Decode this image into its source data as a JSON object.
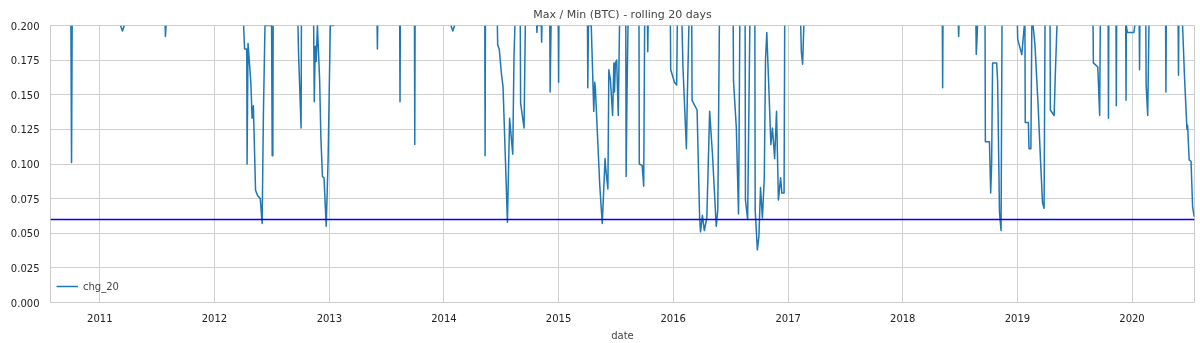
{
  "chart_data": {
    "type": "line",
    "title": "Max / Min (BTC) - rolling 20 days",
    "xlabel": "date",
    "xlim": [
      "2010-07-28",
      "2020-07-18"
    ],
    "ylim": [
      0,
      0.2
    ],
    "xticks": [
      "2011",
      "2012",
      "2013",
      "2014",
      "2015",
      "2016",
      "2017",
      "2018",
      "2019",
      "2020"
    ],
    "yticks": [
      {
        "value": 0,
        "label": "0.000"
      },
      {
        "value": 0.025,
        "label": "0.025"
      },
      {
        "value": 0.05,
        "label": "0.050"
      },
      {
        "value": 0.075,
        "label": "0.075"
      },
      {
        "value": 0.1,
        "label": "0.100"
      },
      {
        "value": 0.125,
        "label": "0.125"
      },
      {
        "value": 0.15,
        "label": "0.150"
      },
      {
        "value": 0.175,
        "label": "0.175"
      },
      {
        "value": 0.2,
        "label": "0.200"
      }
    ],
    "grid": true,
    "legend": "bottom left",
    "line_style": "solid",
    "ref_lines": [
      {
        "axis": "y",
        "value": 0.06,
        "color": "#0000ff"
      }
    ],
    "series": [
      {
        "name": "chg_20",
        "color": "#1f77b4",
        "x": [
          "2010-10-01",
          "2010-10-03",
          "2010-10-05",
          "2011-01-01",
          "2011-03-08",
          "2011-03-14",
          "2011-03-20",
          "2011-05-01",
          "2011-07-28",
          "2011-07-29",
          "2011-07-31",
          "2012-01-01",
          "2012-04-03",
          "2012-04-06",
          "2012-04-13",
          "2012-04-14",
          "2012-04-17",
          "2012-04-26",
          "2012-04-30",
          "2012-05-04",
          "2012-05-11",
          "2012-05-18",
          "2012-05-26",
          "2012-06-01",
          "2012-06-03",
          "2012-06-05",
          "2012-06-10",
          "2012-07-01",
          "2012-07-03",
          "2012-07-05",
          "2012-07-06",
          "2012-08-15",
          "2012-09-23",
          "2012-09-25",
          "2012-10-03",
          "2012-10-04",
          "2012-11-01",
          "2012-11-12",
          "2012-11-14",
          "2012-11-17",
          "2012-11-20",
          "2012-11-24",
          "2012-12-01",
          "2012-12-05",
          "2012-12-10",
          "2012-12-15",
          "2012-12-22",
          "2012-12-28",
          "2013-01-04",
          "2013-01-10",
          "2013-01-16",
          "2013-03-01",
          "2013-06-02",
          "2013-06-03",
          "2013-06-04",
          "2013-07-01",
          "2013-08-13",
          "2013-08-14",
          "2013-08-15",
          "2013-09-01",
          "2013-09-29",
          "2013-09-30",
          "2013-10-01",
          "2013-12-01",
          "2014-01-23",
          "2014-01-29",
          "2014-02-04",
          "2014-03-01",
          "2014-05-11",
          "2014-05-12",
          "2014-05-13",
          "2014-06-01",
          "2014-06-20",
          "2014-06-21",
          "2014-06-26",
          "2014-07-03",
          "2014-07-08",
          "2014-07-16",
          "2014-07-22",
          "2014-07-29",
          "2014-08-01",
          "2014-08-08",
          "2014-08-12",
          "2014-08-15",
          "2014-08-25",
          "2014-09-01",
          "2014-09-02",
          "2014-09-13",
          "2014-09-17",
          "2014-10-01",
          "2014-10-23",
          "2014-10-24",
          "2014-10-25",
          "2014-11-07",
          "2014-11-08",
          "2014-11-09",
          "2014-11-20",
          "2014-12-04",
          "2014-12-05",
          "2014-12-08",
          "2014-12-20",
          "2014-12-31",
          "2015-01-01",
          "2015-01-02",
          "2015-02-15",
          "2015-04-03",
          "2015-04-04",
          "2015-04-06",
          "2015-04-15",
          "2015-04-23",
          "2015-04-26",
          "2015-04-28",
          "2015-05-12",
          "2015-05-20",
          "2015-05-29",
          "2015-05-31",
          "2015-06-07",
          "2015-06-10",
          "2015-06-15",
          "2015-06-22",
          "2015-06-26",
          "2015-06-28",
          "2015-07-01",
          "2015-07-05",
          "2015-07-10",
          "2015-07-14",
          "2015-07-22",
          "2015-08-03",
          "2015-08-04",
          "2015-08-07",
          "2015-08-10",
          "2015-08-25",
          "2015-09-14",
          "2015-09-15",
          "2015-09-24",
          "2015-09-29",
          "2015-10-02",
          "2015-10-07",
          "2015-10-11",
          "2015-10-12",
          "2015-10-13",
          "2015-11-20",
          "2015-12-23",
          "2015-12-24",
          "2016-01-05",
          "2016-01-12",
          "2016-01-14",
          "2016-01-22",
          "2016-01-29",
          "2016-02-01",
          "2016-02-12",
          "2016-02-15",
          "2016-02-20",
          "2016-02-25",
          "2016-02-29",
          "2016-03-01",
          "2016-03-17",
          "2016-03-25",
          "2016-03-28",
          "2016-04-03",
          "2016-04-09",
          "2016-04-17",
          "2016-04-26",
          "2016-05-05",
          "2016-05-11",
          "2016-05-17",
          "2016-05-22",
          "2016-05-27",
          "2016-06-20",
          "2016-07-10",
          "2016-07-11",
          "2016-07-20",
          "2016-07-27",
          "2016-07-29",
          "2016-07-31",
          "2016-08-10",
          "2016-08-17",
          "2016-08-18",
          "2016-08-25",
          "2016-09-01",
          "2016-09-10",
          "2016-09-17",
          "2016-09-18",
          "2016-09-25",
          "2016-09-30",
          "2016-10-05",
          "2016-10-11",
          "2016-10-17",
          "2016-10-21",
          "2016-10-25",
          "2016-11-01",
          "2016-11-07",
          "2016-11-12",
          "2016-11-19",
          "2016-11-25",
          "2016-12-01",
          "2016-12-08",
          "2016-12-12",
          "2016-12-19",
          "2016-12-21",
          "2017-01-15",
          "2017-02-10",
          "2017-02-12",
          "2017-02-16",
          "2017-02-20",
          "2017-06-01",
          "2018-05-07",
          "2018-05-08",
          "2018-05-09",
          "2018-06-01",
          "2018-06-27",
          "2018-06-28",
          "2018-06-29",
          "2018-07-20",
          "2018-08-22",
          "2018-08-23",
          "2018-08-25",
          "2018-08-27",
          "2018-09-10",
          "2018-09-20",
          "2018-09-21",
          "2018-10-04",
          "2018-10-08",
          "2018-10-11",
          "2018-10-14",
          "2018-10-27",
          "2018-10-30",
          "2018-11-05",
          "2018-11-10",
          "2018-11-13",
          "2018-12-10",
          "2019-01-01",
          "2019-01-02",
          "2019-01-15",
          "2019-01-23",
          "2019-01-24",
          "2019-01-25",
          "2019-01-26",
          "2019-02-05",
          "2019-02-07",
          "2019-02-13",
          "2019-02-16",
          "2019-02-20",
          "2019-02-26",
          "2019-03-08",
          "2019-03-16",
          "2019-03-22",
          "2019-03-27",
          "2019-03-30",
          "2019-04-08",
          "2019-04-15",
          "2019-04-16",
          "2019-04-28",
          "2019-05-02",
          "2019-05-07",
          "2019-06-15",
          "2019-08-30",
          "2019-08-31",
          "2019-09-14",
          "2019-09-20",
          "2019-09-22",
          "2019-10-01",
          "2019-10-17",
          "2019-10-18",
          "2019-10-19",
          "2019-11-01",
          "2019-11-11",
          "2019-11-12",
          "2019-11-13",
          "2019-11-30",
          "2019-12-12",
          "2019-12-13",
          "2019-12-14",
          "2019-12-17",
          "2020-01-07",
          "2020-01-10",
          "2020-01-17",
          "2020-01-24",
          "2020-01-25",
          "2020-01-26",
          "2020-02-05",
          "2020-02-14",
          "2020-02-15",
          "2020-02-20",
          "2020-02-24",
          "2020-02-25",
          "2020-03-15",
          "2020-04-17",
          "2020-04-18",
          "2020-04-19",
          "2020-05-10",
          "2020-05-27",
          "2020-05-28",
          "2020-05-29",
          "2020-06-05",
          "2020-06-10",
          "2020-06-16",
          "2020-06-24",
          "2020-06-26",
          "2020-07-01",
          "2020-07-07",
          "2020-07-12",
          "2020-07-17"
        ],
        "values": [
          0.2,
          0.101,
          0.2,
          null,
          0.2,
          0.196,
          0.2,
          null,
          0.2,
          0.192,
          0.2,
          null,
          0.2,
          0.183,
          0.183,
          0.1,
          0.187,
          0.159,
          0.133,
          0.142,
          0.081,
          0.077,
          0.075,
          0.057,
          0.097,
          0.136,
          0.2,
          0.2,
          0.106,
          0.106,
          0.2,
          null,
          0.2,
          0.179,
          0.126,
          0.2,
          null,
          0.2,
          0.145,
          0.185,
          0.174,
          0.2,
          0.161,
          0.119,
          0.091,
          0.09,
          0.055,
          0.103,
          0.2,
          0.2,
          0.2,
          null,
          0.2,
          0.183,
          0.2,
          null,
          0.2,
          0.145,
          0.2,
          null,
          0.2,
          0.114,
          0.2,
          null,
          0.2,
          0.196,
          0.2,
          null,
          0.2,
          0.106,
          0.2,
          null,
          0.2,
          0.186,
          0.183,
          0.165,
          0.156,
          0.101,
          0.058,
          0.133,
          0.125,
          0.107,
          0.178,
          0.2,
          null,
          0.2,
          0.144,
          0.126,
          0.2,
          null,
          0.2,
          0.195,
          0.2,
          0.2,
          0.188,
          0.2,
          null,
          0.2,
          0.152,
          0.2,
          null,
          0.2,
          0.159,
          0.2,
          null,
          0.2,
          0.155,
          0.2,
          0.2,
          0.138,
          0.159,
          0.155,
          0.085,
          0.057,
          0.104,
          0.097,
          0.082,
          0.168,
          0.161,
          0.135,
          0.173,
          0.152,
          0.173,
          0.175,
          0.135,
          0.2,
          null,
          0.2,
          0.091,
          0.153,
          0.2,
          null,
          0.2,
          0.1,
          0.099,
          0.084,
          0.2,
          null,
          0.2,
          0.181,
          0.2,
          null,
          0.2,
          0.168,
          0.159,
          0.157,
          0.2,
          null,
          0.2,
          0.17,
          0.111,
          0.149,
          0.2,
          null,
          0.2,
          0.146,
          0.139,
          0.062,
          0.051,
          0.063,
          0.052,
          0.061,
          0.138,
          0.107,
          0.081,
          0.055,
          0.067,
          0.2,
          null,
          0.2,
          0.16,
          0.126,
          0.064,
          0.126,
          0.2,
          null,
          0.2,
          0.074,
          0.06,
          0.2,
          null,
          0.2,
          0.067,
          0.038,
          0.048,
          0.083,
          0.061,
          0.09,
          0.176,
          0.195,
          0.152,
          0.114,
          0.126,
          0.104,
          0.138,
          0.074,
          0.09,
          0.079,
          0.079,
          0.2,
          null,
          0.2,
          0.181,
          0.172,
          0.2,
          null,
          0.2,
          0.155,
          0.2,
          null,
          0.2,
          0.192,
          0.2,
          null,
          0.2,
          0.179,
          0.188,
          0.2,
          null,
          0.2,
          0.116,
          0.116,
          0.079,
          0.1,
          0.173,
          0.173,
          0.16,
          0.065,
          0.052,
          0.2,
          null,
          0.2,
          0.19,
          0.179,
          0.2,
          null,
          0.2,
          0.13,
          0.13,
          0.111,
          0.111,
          0.2,
          0.2,
          0.186,
          0.142,
          0.101,
          0.072,
          0.068,
          0.2,
          null,
          0.2,
          0.139,
          0.135,
          0.166,
          0.2,
          null,
          0.2,
          0.173,
          0.17,
          0.135,
          0.2,
          null,
          0.2,
          0.133,
          0.2,
          null,
          0.2,
          0.142,
          0.2,
          null,
          0.2,
          0.146,
          0.2,
          0.195,
          0.195,
          0.2,
          null,
          0.2,
          0.168,
          0.2,
          null,
          0.2,
          0.157,
          0.135,
          0.2,
          null,
          null,
          0.2,
          0.152,
          0.2,
          null,
          0.2,
          0.164,
          0.2,
          null,
          0.2,
          0.164,
          0.125,
          0.128,
          0.103,
          0.102,
          0.069,
          0.062
        ]
      }
    ]
  }
}
